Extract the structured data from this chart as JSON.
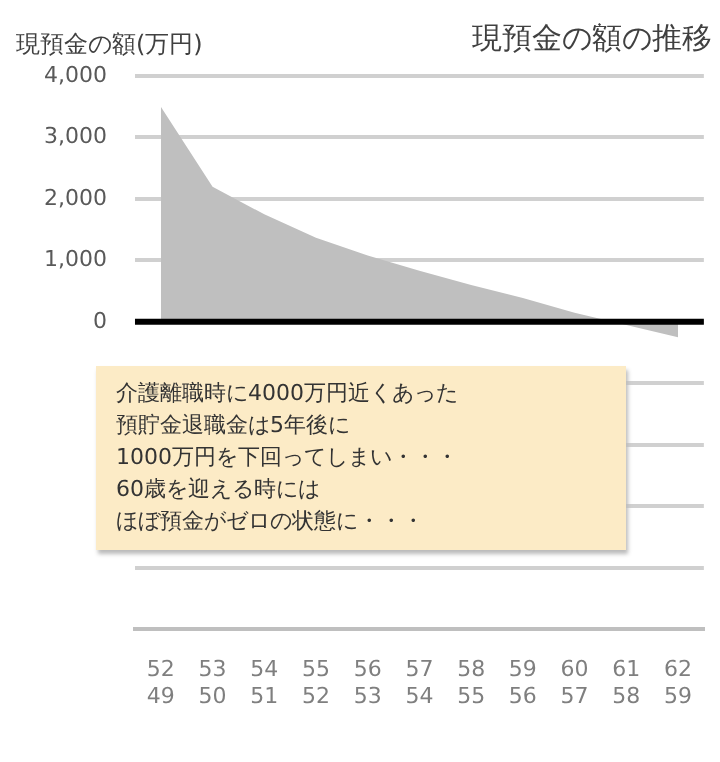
{
  "chart_data": {
    "type": "area",
    "title": "現預金の額の推移",
    "ylabel": "現預金の額(万円)",
    "categories": [
      "52\n49",
      "53\n50",
      "54\n51",
      "55\n52",
      "56\n53",
      "57\n54",
      "58\n55",
      "59\n56",
      "60\n57",
      "61\n58",
      "62\n59"
    ],
    "series": [
      {
        "color": "#bfbfbf",
        "values": [
          3500,
          2200,
          1750,
          1370,
          1080,
          830,
          600,
          390,
          150,
          -50,
          -250
        ]
      }
    ],
    "ylim": [
      -5000,
      4000
    ],
    "yticks": [
      {
        "value": -5000,
        "label": null
      },
      {
        "value": -4000,
        "label": null
      },
      {
        "value": -3000,
        "label": null
      },
      {
        "value": -2000,
        "label": null
      },
      {
        "value": -1000,
        "label": null
      },
      {
        "value": 0,
        "label": "0"
      },
      {
        "value": 1000,
        "label": "1,000"
      },
      {
        "value": 2000,
        "label": "2,000"
      },
      {
        "value": 3000,
        "label": "3,000"
      },
      {
        "value": 4000,
        "label": "4,000"
      }
    ],
    "grid": "y",
    "legend": false,
    "ref_lines": [
      {
        "axis": "y",
        "value": 0,
        "color": "#000000"
      }
    ],
    "annotations": [
      "介護離職時に4000万円近くあった",
      "預貯金退職金は5年後に",
      "1000万円を下回ってしまい・・・",
      "60歳を迎える時には",
      "ほぼ預金がゼロの状態に・・・"
    ]
  }
}
